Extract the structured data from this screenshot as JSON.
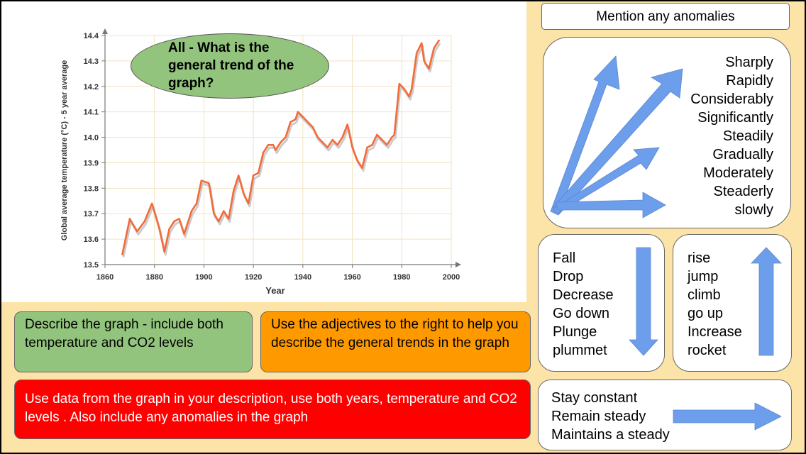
{
  "oval_prompt": "All - What is the general trend of the graph?",
  "describe_box": "Describe the graph - include both temperature and CO2 levels",
  "adjectives_box": "Use the adjectives to the right to help you describe the general trends in the graph",
  "data_box": "Use data from the graph in your description, use both years, temperature and CO2 levels . Also include any anomalies in the graph",
  "anomalies_box": "Mention any anomalies",
  "adverbs": [
    "Sharply",
    "Rapidly",
    "Considerably",
    "Significantly",
    "Steadily",
    "Gradually",
    "Moderately",
    "Steaderly",
    "slowly"
  ],
  "fall_words": [
    "Fall",
    "Drop",
    "Decrease",
    "Go down",
    "Plunge",
    "plummet"
  ],
  "rise_words": [
    "rise",
    "jump",
    "climb",
    "go up",
    "Increase",
    "rocket"
  ],
  "constant_words": [
    "Stay constant",
    "Remain steady",
    "Maintains a steady"
  ],
  "colors": {
    "line": "#f26b3a",
    "line_shadow": "#cccccc",
    "grid": "#f3e3bf",
    "arrow": "#6d9eeb",
    "oval_fill": "#93c47d",
    "background": "#fce4a8"
  },
  "chart_data": {
    "type": "line",
    "xlabel": "Year",
    "ylabel": "Global average temperature (°C) - 5 year average",
    "xlim": [
      1860,
      2000
    ],
    "ylim": [
      13.5,
      14.4
    ],
    "x_ticks": [
      "1860",
      "1880",
      "1900",
      "1920",
      "1940",
      "1960",
      "1980",
      "2000"
    ],
    "y_ticks": [
      "13.5",
      "13.6",
      "13.7",
      "13.8",
      "13.9",
      "14.0",
      "14.1",
      "14.2",
      "14.3",
      "14.4"
    ],
    "grid": true,
    "series": [
      {
        "x": [
          1867,
          1870,
          1873,
          1876,
          1879,
          1882,
          1884,
          1886,
          1888,
          1890,
          1892,
          1895,
          1897,
          1899,
          1902,
          1904,
          1906,
          1908,
          1910,
          1912,
          1914,
          1916,
          1918,
          1920,
          1922,
          1924,
          1926,
          1928,
          1929,
          1931,
          1933,
          1935,
          1937,
          1938,
          1940,
          1942,
          1944,
          1946,
          1948,
          1950,
          1952,
          1954,
          1956,
          1958,
          1960,
          1962,
          1964,
          1966,
          1968,
          1970,
          1972,
          1974,
          1976,
          1977,
          1979,
          1981,
          1983,
          1984,
          1986,
          1988,
          1989,
          1991,
          1993,
          1995
        ],
        "y": [
          13.54,
          13.68,
          13.63,
          13.67,
          13.74,
          13.64,
          13.55,
          13.64,
          13.67,
          13.68,
          13.62,
          13.71,
          13.74,
          13.83,
          13.82,
          13.7,
          13.67,
          13.71,
          13.68,
          13.79,
          13.85,
          13.78,
          13.74,
          13.85,
          13.86,
          13.94,
          13.97,
          13.97,
          13.95,
          13.98,
          14.0,
          14.06,
          14.07,
          14.1,
          14.08,
          14.06,
          14.04,
          14.0,
          13.98,
          13.96,
          13.99,
          13.97,
          14.0,
          14.05,
          13.96,
          13.91,
          13.88,
          13.96,
          13.97,
          14.01,
          13.99,
          13.97,
          14.0,
          14.01,
          14.21,
          14.19,
          14.16,
          14.19,
          14.33,
          14.37,
          14.3,
          14.27,
          14.35,
          14.38
        ]
      }
    ]
  }
}
